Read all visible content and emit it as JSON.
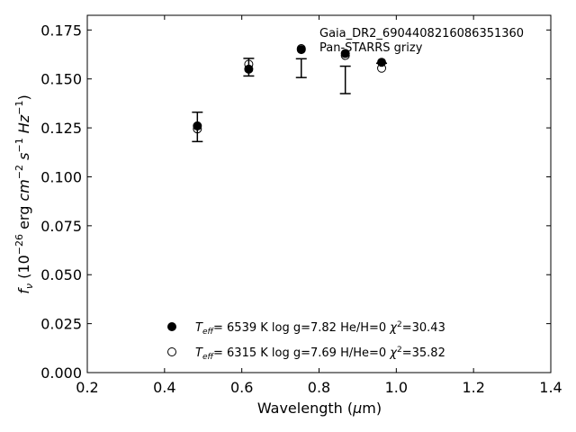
{
  "chart_data": {
    "type": "scatter",
    "annotation": [
      "Gaia_DR2_6904408216086351360",
      "Pan-STARRS grizy"
    ],
    "xlabel": {
      "main": "Wavelength (",
      "mu": "μ",
      "unit": "m)"
    },
    "ylabel": {
      "f": "f",
      "nu": "ν",
      "p1": " (10",
      "e1": "−26",
      "p2": " erg ",
      "cm": "cm",
      "e2": "−2",
      "s": "s",
      "e3": "−1",
      "hz": "Hz",
      "e4": "−1",
      "p3": ")"
    },
    "xlim": [
      0.2,
      1.4
    ],
    "ylim": [
      0.0,
      0.1825
    ],
    "xticks": [
      0.2,
      0.4,
      0.6,
      0.8,
      1.0,
      1.2,
      1.4
    ],
    "xtick_labels": [
      "0.2",
      "0.4",
      "0.6",
      "0.8",
      "1.0",
      "1.2",
      "1.4"
    ],
    "yticks": [
      0.0,
      0.025,
      0.05,
      0.075,
      0.1,
      0.125,
      0.15,
      0.175
    ],
    "ytick_labels": [
      "0.000",
      "0.025",
      "0.050",
      "0.075",
      "0.100",
      "0.125",
      "0.150",
      "0.175"
    ],
    "grid": false,
    "legend_position": "lower-center",
    "observed": {
      "x": [
        0.485,
        0.618,
        0.754,
        0.868,
        0.962
      ],
      "y": [
        0.1255,
        0.156,
        0.1555,
        0.1495,
        0.158
      ],
      "err": [
        0.0075,
        0.0045,
        0.0048,
        0.007,
        0.0
      ]
    },
    "series": [
      {
        "marker": "filled-circle",
        "x": [
          0.485,
          0.618,
          0.754,
          0.868,
          0.962
        ],
        "y": [
          0.126,
          0.155,
          0.165,
          0.163,
          0.1585
        ],
        "legend": {
          "teff_sym": "T",
          "teff_sub": "eff",
          "teff_val": "=  6539 K  log g=7.82  He/H=0  ",
          "chi": "χ",
          "chi_sup": "2",
          "chi_val": "=30.43"
        }
      },
      {
        "marker": "open-circle",
        "x": [
          0.485,
          0.618,
          0.754,
          0.868,
          0.962
        ],
        "y": [
          0.1245,
          0.1575,
          0.1655,
          0.162,
          0.1555
        ],
        "legend": {
          "teff_sym": "T",
          "teff_sub": "eff",
          "teff_val": "=  6315 K  log g=7.69  H/He=0  ",
          "chi": "χ",
          "chi_sup": "2",
          "chi_val": "=35.82"
        }
      }
    ]
  }
}
